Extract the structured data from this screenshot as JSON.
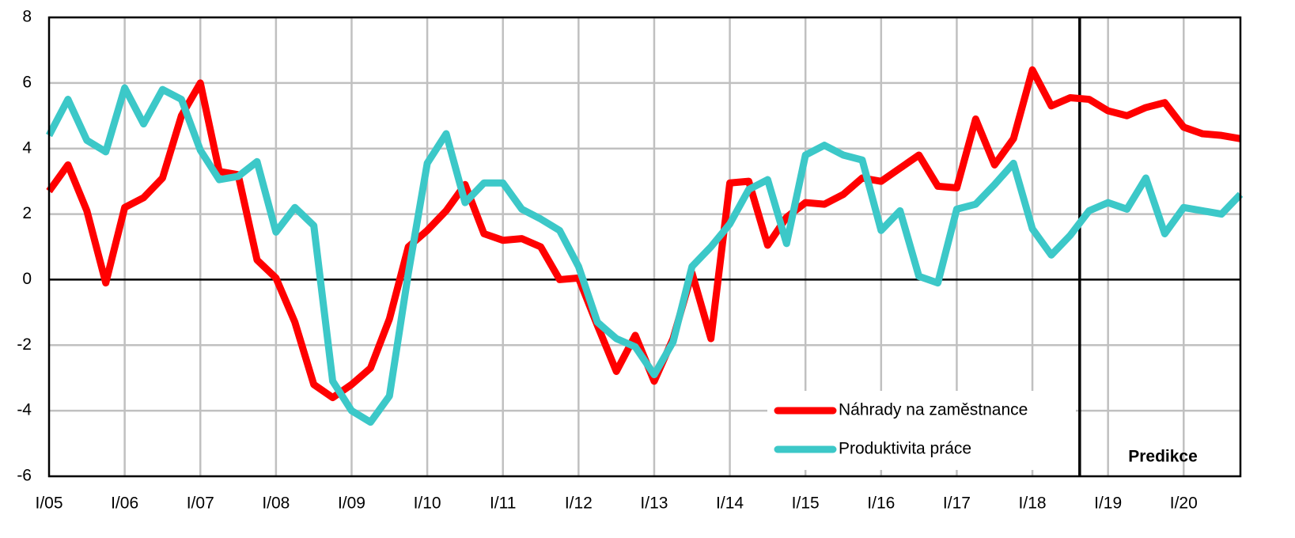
{
  "chart_data": {
    "type": "line",
    "categories": [
      "I/05",
      null,
      null,
      null,
      "I/06",
      null,
      null,
      null,
      "I/07",
      null,
      null,
      null,
      "I/08",
      null,
      null,
      null,
      "I/09",
      null,
      null,
      null,
      "I/10",
      null,
      null,
      null,
      "I/11",
      null,
      null,
      null,
      "I/12",
      null,
      null,
      null,
      "I/13",
      null,
      null,
      null,
      "I/14",
      null,
      null,
      null,
      "I/15",
      null,
      null,
      null,
      "I/16",
      null,
      null,
      null,
      "I/17",
      null,
      null,
      null,
      "I/18",
      null,
      null,
      null,
      "I/19",
      null,
      null,
      null,
      "I/20",
      null,
      null,
      null
    ],
    "series": [
      {
        "name": "Náhrady na zaměstnance",
        "color": "#ff0000",
        "values": [
          2.7,
          3.5,
          2.1,
          -0.1,
          2.2,
          2.5,
          3.1,
          5.0,
          6.0,
          3.3,
          3.2,
          0.6,
          0.05,
          -1.3,
          -3.2,
          -3.6,
          -3.2,
          -2.7,
          -1.2,
          1.0,
          1.5,
          2.1,
          2.9,
          1.4,
          1.2,
          1.25,
          1.0,
          0.0,
          0.05,
          -1.4,
          -2.8,
          -1.7,
          -3.1,
          -1.8,
          0.2,
          -1.8,
          2.95,
          3.0,
          1.05,
          1.9,
          2.35,
          2.3,
          2.6,
          3.1,
          3.0,
          3.4,
          3.8,
          2.85,
          2.8,
          4.9,
          3.5,
          4.3,
          6.4,
          5.3,
          5.55,
          5.5,
          5.15,
          5.0,
          5.25,
          5.4,
          4.65,
          4.45,
          4.4,
          4.3
        ]
      },
      {
        "name": "Produktivita práce",
        "color": "#3cc8c8",
        "values": [
          4.4,
          5.5,
          4.25,
          3.9,
          5.85,
          4.75,
          5.8,
          5.5,
          3.95,
          3.05,
          3.15,
          3.6,
          1.45,
          2.2,
          1.65,
          -3.1,
          -4.0,
          -4.35,
          -3.55,
          0.2,
          3.55,
          4.45,
          2.35,
          2.95,
          2.95,
          2.15,
          1.85,
          1.5,
          0.4,
          -1.3,
          -1.8,
          -2.05,
          -2.9,
          -1.9,
          0.4,
          1.0,
          1.7,
          2.75,
          3.05,
          1.1,
          3.8,
          4.1,
          3.8,
          3.65,
          1.5,
          2.1,
          0.1,
          -0.1,
          2.15,
          2.3,
          2.9,
          3.55,
          1.55,
          0.75,
          1.35,
          2.1,
          2.35,
          2.15,
          3.1,
          1.4,
          2.2,
          2.1,
          2.0,
          2.6
        ]
      }
    ],
    "ylim": [
      -6,
      8
    ],
    "yticks": [
      -6,
      -4,
      -2,
      0,
      2,
      4,
      6,
      8
    ],
    "grid": true,
    "annotations": [
      "Predikce"
    ]
  }
}
